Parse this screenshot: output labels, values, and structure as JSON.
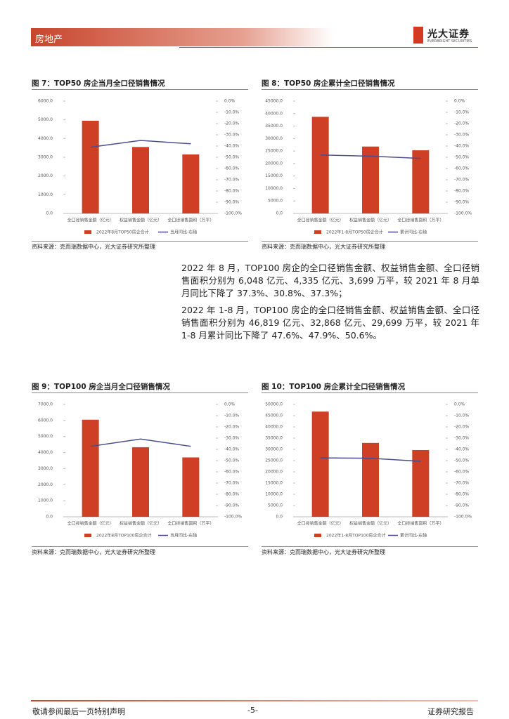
{
  "header": {
    "section": "房地产",
    "logo": "光大证券",
    "logo_en": "EVERBRIGHT SECURITIES"
  },
  "paragraphs": [
    "2022 年 8 月，TOP100 房企的全口径销售金额、权益销售金额、全口径销售面积分别为 6,048 亿元、4,335 亿元、3,699 万平，较 2021 年 8 月单月同比下降了 37.3%、30.8%、37.3%；",
    "2022 年 1-8 月，TOP100 房企的全口径销售金额、权益销售金额、全口径销售面积分别为 46,819 亿元、32,868 亿元、29,699 万平，较 2021 年 1-8 月累计同比下降了 47.6%、47.9%、50.6%。"
  ],
  "footer": {
    "left": "敬请参阅最后一页特别声明",
    "page": "-5-",
    "right": "证券研究报告"
  },
  "chart_data": [
    {
      "type": "bar",
      "title": "图 7：TOP50 房企当月全口径销售情况",
      "source": "资料来源：克而瑞数据中心，光大证券研究所整理",
      "categories": [
        "全口径销售金额（亿元）",
        "权益销售金额（亿元）",
        "全口径销售面积（万平）"
      ],
      "series": [
        {
          "name": "2022年8月TOP50房企合计",
          "color": "#cf3f26",
          "type": "bar",
          "axis": "y",
          "values": [
            4950,
            3550,
            3150
          ]
        },
        {
          "name": "当月同比-右轴",
          "color": "#4b4d8c",
          "type": "line",
          "axis": "y2",
          "values": [
            -41,
            -35,
            -38
          ]
        }
      ],
      "ylim": [
        0,
        6000
      ],
      "yticks": [
        {
          "value": 0,
          "label": "0.0"
        },
        {
          "value": 1000,
          "label": "1000.0"
        },
        {
          "value": 2000,
          "label": "2000.0"
        },
        {
          "value": 3000,
          "label": "3000.0"
        },
        {
          "value": 4000,
          "label": "4000.0"
        },
        {
          "value": 5000,
          "label": "5000.0"
        },
        {
          "value": 6000,
          "label": "6000.0"
        }
      ],
      "y2lim": [
        -100,
        0
      ],
      "y2ticks": [
        {
          "value": 0,
          "label": "0.0%"
        },
        {
          "value": -10,
          "label": "-10.0%"
        },
        {
          "value": -20,
          "label": "-20.0%"
        },
        {
          "value": -30,
          "label": "-30.0%"
        },
        {
          "value": -40,
          "label": "-40.0%"
        },
        {
          "value": -50,
          "label": "-50.0%"
        },
        {
          "value": -60,
          "label": "-60.0%"
        },
        {
          "value": -70,
          "label": "-70.0%"
        },
        {
          "value": -80,
          "label": "-80.0%"
        },
        {
          "value": -90,
          "label": "-90.0%"
        },
        {
          "value": -100,
          "label": "-100.0%"
        }
      ]
    },
    {
      "type": "bar",
      "title": "图 8：TOP50 房企累计全口径销售情况",
      "source": "资料来源：克而瑞数据中心，光大证券研究所整理",
      "categories": [
        "全口径销售金额（亿元）",
        "权益销售金额（亿元）",
        "全口径销售面积（万平）"
      ],
      "series": [
        {
          "name": "2022年1-8月TOP50房企合计",
          "color": "#cf3f26",
          "type": "bar",
          "axis": "y",
          "values": [
            38700,
            26800,
            25300
          ]
        },
        {
          "name": "累计同比-右轴",
          "color": "#4b4d8c",
          "type": "line",
          "axis": "y2",
          "values": [
            -48,
            -49,
            -51
          ]
        }
      ],
      "ylim": [
        0,
        45000
      ],
      "yticks": [
        {
          "value": 0,
          "label": "0.0"
        },
        {
          "value": 5000,
          "label": "5000.0"
        },
        {
          "value": 10000,
          "label": "10000.0"
        },
        {
          "value": 15000,
          "label": "15000.0"
        },
        {
          "value": 20000,
          "label": "20000.0"
        },
        {
          "value": 25000,
          "label": "25000.0"
        },
        {
          "value": 30000,
          "label": "30000.0"
        },
        {
          "value": 35000,
          "label": "35000.0"
        },
        {
          "value": 40000,
          "label": "40000.0"
        },
        {
          "value": 45000,
          "label": "45000.0"
        }
      ],
      "y2lim": [
        -100,
        0
      ],
      "y2ticks": [
        {
          "value": 0,
          "label": "0.0%"
        },
        {
          "value": -10,
          "label": "-10.0%"
        },
        {
          "value": -20,
          "label": "-20.0%"
        },
        {
          "value": -30,
          "label": "-30.0%"
        },
        {
          "value": -40,
          "label": "-40.0%"
        },
        {
          "value": -50,
          "label": "-50.0%"
        },
        {
          "value": -60,
          "label": "-60.0%"
        },
        {
          "value": -70,
          "label": "-70.0%"
        },
        {
          "value": -80,
          "label": "-80.0%"
        },
        {
          "value": -90,
          "label": "-90.0%"
        },
        {
          "value": -100,
          "label": "-100.0%"
        }
      ]
    },
    {
      "type": "bar",
      "title": "图 9：TOP100 房企当月全口径销售情况",
      "source": "资料来源：克而瑞数据中心，光大证券研究所整理",
      "categories": [
        "全口径销售金额（亿元）",
        "权益销售金额（亿元）",
        "全口径销售面积（万平）"
      ],
      "series": [
        {
          "name": "2022年8月TOP100房企合计",
          "color": "#cf3f26",
          "type": "bar",
          "axis": "y",
          "values": [
            6048,
            4335,
            3699
          ]
        },
        {
          "name": "当月同比-右轴",
          "color": "#4b4d8c",
          "type": "line",
          "axis": "y2",
          "values": [
            -37.3,
            -30.8,
            -37.3
          ]
        }
      ],
      "ylim": [
        0,
        7000
      ],
      "yticks": [
        {
          "value": 0,
          "label": "0.0"
        },
        {
          "value": 1000,
          "label": "1000.0"
        },
        {
          "value": 2000,
          "label": "2000.0"
        },
        {
          "value": 3000,
          "label": "3000.0"
        },
        {
          "value": 4000,
          "label": "4000.0"
        },
        {
          "value": 5000,
          "label": "5000.0"
        },
        {
          "value": 6000,
          "label": "6000.0"
        },
        {
          "value": 7000,
          "label": "7000.0"
        }
      ],
      "y2lim": [
        -100,
        0
      ],
      "y2ticks": [
        {
          "value": 0,
          "label": "0.0%"
        },
        {
          "value": -10,
          "label": "-10.0%"
        },
        {
          "value": -20,
          "label": "-20.0%"
        },
        {
          "value": -30,
          "label": "-30.0%"
        },
        {
          "value": -40,
          "label": "-40.0%"
        },
        {
          "value": -50,
          "label": "-50.0%"
        },
        {
          "value": -60,
          "label": "-60.0%"
        },
        {
          "value": -70,
          "label": "-70.0%"
        },
        {
          "value": -80,
          "label": "-80.0%"
        },
        {
          "value": -90,
          "label": "-90.0%"
        },
        {
          "value": -100,
          "label": "-100.0%"
        }
      ]
    },
    {
      "type": "bar",
      "title": "图 10：TOP100 房企累计全口径销售情况",
      "source": "资料来源：克而瑞数据中心，光大证券研究所整理",
      "categories": [
        "全口径销售金额（亿元）",
        "权益销售金额（亿元）",
        "全口径销售面积（万平）"
      ],
      "series": [
        {
          "name": "2022年1-8月TOP100房企合计",
          "color": "#cf3f26",
          "type": "bar",
          "axis": "y",
          "values": [
            46819,
            32868,
            29699
          ]
        },
        {
          "name": "累计同比-右轴",
          "color": "#4b4d8c",
          "type": "line",
          "axis": "y2",
          "values": [
            -47.6,
            -47.9,
            -50.6
          ]
        }
      ],
      "ylim": [
        0,
        50000
      ],
      "yticks": [
        {
          "value": 0,
          "label": "0.0"
        },
        {
          "value": 5000,
          "label": "5000.0"
        },
        {
          "value": 10000,
          "label": "10000.0"
        },
        {
          "value": 15000,
          "label": "15000.0"
        },
        {
          "value": 20000,
          "label": "20000.0"
        },
        {
          "value": 25000,
          "label": "25000.0"
        },
        {
          "value": 30000,
          "label": "30000.0"
        },
        {
          "value": 35000,
          "label": "35000.0"
        },
        {
          "value": 40000,
          "label": "40000.0"
        },
        {
          "value": 45000,
          "label": "45000.0"
        },
        {
          "value": 50000,
          "label": "50000.0"
        }
      ],
      "y2lim": [
        -100,
        0
      ],
      "y2ticks": [
        {
          "value": 0,
          "label": "0.0%"
        },
        {
          "value": -10,
          "label": "-10.0%"
        },
        {
          "value": -20,
          "label": "-20.0%"
        },
        {
          "value": -30,
          "label": "-30.0%"
        },
        {
          "value": -40,
          "label": "-40.0%"
        },
        {
          "value": -50,
          "label": "-50.0%"
        },
        {
          "value": -60,
          "label": "-60.0%"
        },
        {
          "value": -70,
          "label": "-70.0%"
        },
        {
          "value": -80,
          "label": "-80.0%"
        },
        {
          "value": -90,
          "label": "-90.0%"
        },
        {
          "value": -100,
          "label": "-100.0%"
        }
      ]
    }
  ]
}
